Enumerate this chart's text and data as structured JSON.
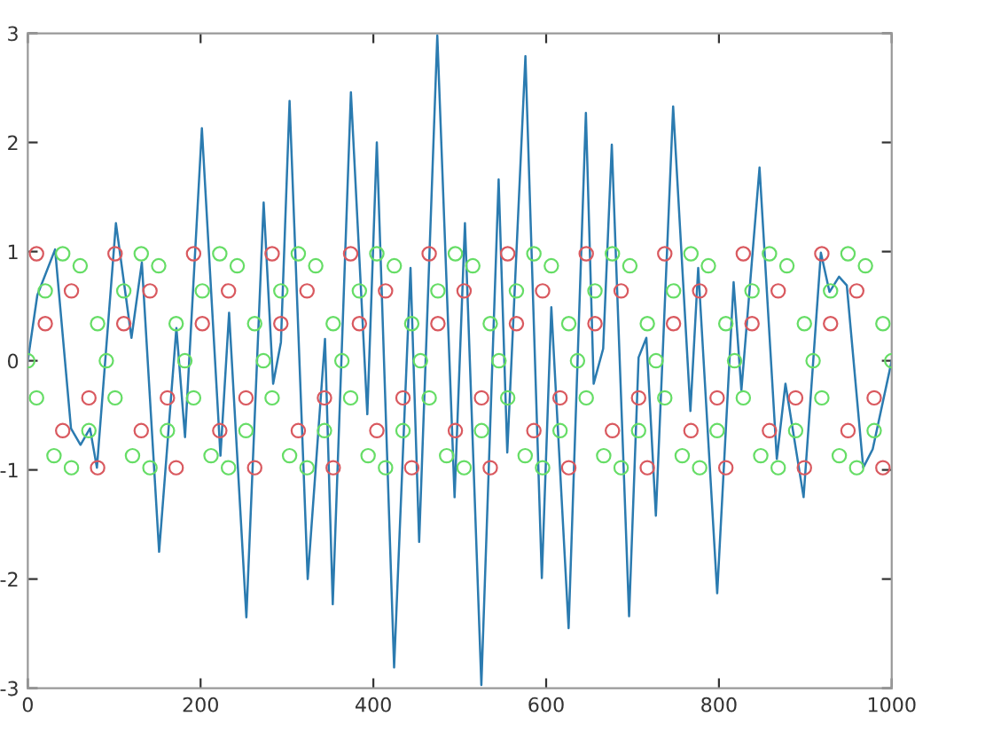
{
  "chart_data": {
    "type": "scatter",
    "x": [
      0,
      10.1,
      20.2,
      30.3,
      40.4,
      50.5,
      60.6,
      70.7,
      80.8,
      90.9,
      101,
      111.1,
      121.2,
      131.3,
      141.4,
      151.5,
      161.6,
      171.7,
      181.8,
      191.9,
      202,
      212.1,
      222.2,
      232.3,
      242.4,
      252.5,
      262.6,
      272.7,
      282.8,
      292.9,
      303,
      313.1,
      323.2,
      333.3,
      343.4,
      353.5,
      363.6,
      373.7,
      383.8,
      393.9,
      404,
      414.1,
      424.2,
      434.3,
      444.4,
      454.5,
      464.6,
      474.7,
      484.8,
      494.9,
      505,
      515.1,
      525.2,
      535.3,
      545.4,
      555.5,
      565.6,
      575.7,
      585.8,
      595.9,
      606,
      616.1,
      626.2,
      636.3,
      646.4,
      656.5,
      666.6,
      676.7,
      686.8,
      696.9,
      707,
      717.1,
      727.2,
      737.3,
      747.4,
      757.5,
      767.6,
      777.7,
      787.8,
      797.9,
      808,
      818.1,
      828.2,
      838.3,
      848.4,
      858.5,
      868.6,
      878.7,
      888.8,
      898.9,
      909,
      919.1,
      929.2,
      939.3,
      949.4,
      959.5,
      969.6,
      979.7,
      989.8,
      1000
    ],
    "series": [
      {
        "type": "line",
        "marker": "none",
        "color": "#2b7bb0",
        "x": [
          0,
          11,
          31.6,
          50,
          61,
          72,
          80,
          102,
          120,
          132,
          152,
          172,
          182,
          201.5,
          223,
          233,
          253,
          273,
          284,
          293,
          303,
          324,
          344,
          353,
          374,
          393,
          404,
          424,
          443,
          453,
          474,
          494,
          506,
          525,
          545,
          555,
          576,
          595,
          606,
          626,
          646,
          655,
          666,
          676,
          696,
          707,
          716,
          727,
          747,
          767,
          776,
          798,
          817,
          826,
          847,
          867,
          877,
          898,
          918,
          928,
          939,
          948,
          967,
          978,
          1000
        ],
        "values": [
          0,
          0.6,
          1.02,
          -0.62,
          -0.77,
          -0.62,
          -0.98,
          1.26,
          0.21,
          0.9,
          -1.75,
          0.3,
          -0.7,
          2.13,
          -0.87,
          0.44,
          -2.35,
          1.45,
          -0.21,
          0.17,
          2.38,
          -2.0,
          0.2,
          -2.23,
          2.46,
          -0.49,
          2.0,
          -2.81,
          0.85,
          -1.66,
          2.98,
          -1.25,
          1.26,
          -2.97,
          1.66,
          -0.84,
          2.79,
          -1.99,
          0.49,
          -2.45,
          2.27,
          -0.21,
          0.11,
          1.98,
          -2.34,
          0.03,
          0.21,
          -1.42,
          2.33,
          -0.46,
          0.85,
          -2.13,
          0.72,
          -0.27,
          1.77,
          -0.9,
          -0.21,
          -1.25,
          0.99,
          0.63,
          0.77,
          0.69,
          -0.98,
          -0.81,
          0
        ]
      },
      {
        "marker": "circle",
        "color": "#d9595f",
        "values": [
          null,
          0.98,
          0.34,
          null,
          -0.64,
          0.64,
          null,
          -0.34,
          -0.98,
          null,
          0.98,
          0.34,
          null,
          -0.64,
          0.64,
          null,
          -0.34,
          -0.98,
          null,
          0.98,
          0.34,
          null,
          -0.64,
          0.64,
          null,
          -0.34,
          -0.98,
          null,
          0.98,
          0.34,
          null,
          -0.64,
          0.64,
          null,
          -0.34,
          -0.98,
          null,
          0.98,
          0.34,
          null,
          -0.64,
          0.64,
          null,
          -0.34,
          -0.98,
          null,
          0.98,
          0.34,
          null,
          -0.64,
          0.64,
          null,
          -0.34,
          -0.98,
          null,
          0.98,
          0.34,
          null,
          -0.64,
          0.64,
          null,
          -0.34,
          -0.98,
          null,
          0.98,
          0.34,
          null,
          -0.64,
          0.64,
          null,
          -0.34,
          -0.98,
          null,
          0.98,
          0.34,
          null,
          -0.64,
          0.64,
          null,
          -0.34,
          -0.98,
          null,
          0.98,
          0.34,
          null,
          -0.64,
          0.64,
          null,
          -0.34,
          -0.98,
          null,
          0.98,
          0.34,
          null,
          -0.64,
          0.64,
          null,
          -0.34,
          -0.98,
          null
        ]
      },
      {
        "marker": "circle",
        "color": "#66dd66",
        "values": [
          0,
          -0.34,
          0.64,
          -0.87,
          0.98,
          -0.98,
          0.87,
          -0.64,
          0.34,
          0,
          -0.34,
          0.64,
          -0.87,
          0.98,
          -0.98,
          0.87,
          -0.64,
          0.34,
          0,
          -0.34,
          0.64,
          -0.87,
          0.98,
          -0.98,
          0.87,
          -0.64,
          0.34,
          0,
          -0.34,
          0.64,
          -0.87,
          0.98,
          -0.98,
          0.87,
          -0.64,
          0.34,
          0,
          -0.34,
          0.64,
          -0.87,
          0.98,
          -0.98,
          0.87,
          -0.64,
          0.34,
          0,
          -0.34,
          0.64,
          -0.87,
          0.98,
          -0.98,
          0.87,
          -0.64,
          0.34,
          0,
          -0.34,
          0.64,
          -0.87,
          0.98,
          -0.98,
          0.87,
          -0.64,
          0.34,
          0,
          -0.34,
          0.64,
          -0.87,
          0.98,
          -0.98,
          0.87,
          -0.64,
          0.34,
          0,
          -0.34,
          0.64,
          -0.87,
          0.98,
          -0.98,
          0.87,
          -0.64,
          0.34,
          0,
          -0.34,
          0.64,
          -0.87,
          0.98,
          -0.98,
          0.87,
          -0.64,
          0.34,
          0,
          -0.34,
          0.64,
          -0.87,
          0.98,
          -0.98,
          0.87,
          -0.64,
          0.34,
          0
        ]
      }
    ],
    "xlim": [
      0,
      1000
    ],
    "xticks": [
      0,
      200,
      400,
      600,
      800,
      1000
    ],
    "ylim": [
      -3,
      3
    ],
    "yticks": [
      -3,
      -2,
      -1,
      0,
      1,
      2,
      3
    ]
  }
}
